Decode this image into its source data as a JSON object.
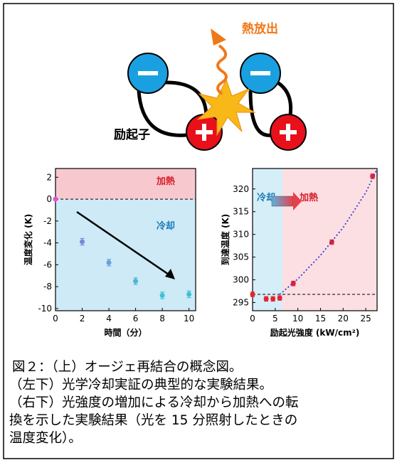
{
  "diagram": {
    "heat_label": "熱放出",
    "exciton_label": "励起子"
  },
  "chart_data": [
    {
      "type": "scatter",
      "xlabel": "時間（分）",
      "ylabel": "温度変化 (K)",
      "xlim": [
        0,
        10.5
      ],
      "ylim": [
        -10.2,
        2.8
      ],
      "xticks": [
        0,
        2,
        4,
        6,
        8,
        10
      ],
      "yticks": [
        -10,
        -8,
        -6,
        -4,
        -2,
        0,
        2
      ],
      "reference_line": 0,
      "regions": [
        {
          "axis": "y",
          "label": "加熱",
          "from": 0,
          "to": 2.8,
          "color": "#f7c9cf"
        },
        {
          "axis": "y",
          "label": "冷却",
          "from": -10.2,
          "to": 0,
          "color": "#cdeaf6"
        }
      ],
      "series": [
        {
          "type": "scatter",
          "x": [
            0,
            2,
            4,
            6,
            8,
            10
          ],
          "values": [
            0,
            -3.9,
            -5.8,
            -7.5,
            -8.8,
            -8.7
          ],
          "errors": [
            null,
            0.3,
            0.3,
            0.3,
            0.3,
            0.3
          ],
          "colors": [
            "#e052d8",
            "#7a88d8",
            "#6aa0d8",
            "#4fb4d4",
            "#3cc2d6",
            "#3cc0d8"
          ]
        }
      ]
    },
    {
      "type": "scatter",
      "xlabel": "励起光強度 (kW/cm²)",
      "ylabel": "到達温度 (K)",
      "xlim": [
        0,
        27.5
      ],
      "ylim": [
        293.2,
        324.5
      ],
      "xticks": [
        0,
        5,
        10,
        15,
        20,
        25
      ],
      "yticks": [
        295,
        300,
        305,
        310,
        315,
        320
      ],
      "reference_line": 296.8,
      "regions": [
        {
          "axis": "x",
          "label": "冷却",
          "from": 0,
          "to": 6.6,
          "color": "#d6eef8"
        },
        {
          "axis": "x",
          "label": "加熱",
          "from": 6.6,
          "to": 27.5,
          "color": "#fbdfe3"
        }
      ],
      "series": [
        {
          "type": "scatter",
          "x": [
            0,
            3,
            4.5,
            6,
            9,
            17.5,
            26.5
          ],
          "values": [
            296.8,
            295.8,
            295.8,
            296,
            299.2,
            308.3,
            322.8
          ],
          "errors": [
            0.5,
            0.5,
            0.5,
            0.5,
            0.5,
            0.5,
            0.5
          ],
          "color": "#e8222f"
        },
        {
          "type": "line",
          "x": [
            6,
            10,
            15,
            20,
            25,
            27.5
          ],
          "values": [
            296.8,
            300.2,
            305.4,
            311.5,
            319.2,
            324.4
          ],
          "color": "#3a3ad0"
        }
      ]
    }
  ],
  "caption": [
    "図２：（上）オージェ再結合の概念図。",
    "（左下）光学冷却実証の典型的な実験結果。",
    "（右下）光強度の増加による冷却から加熱への転",
    "換を示した実験結果（光を 15 分照射したときの",
    "温度変化）。"
  ]
}
